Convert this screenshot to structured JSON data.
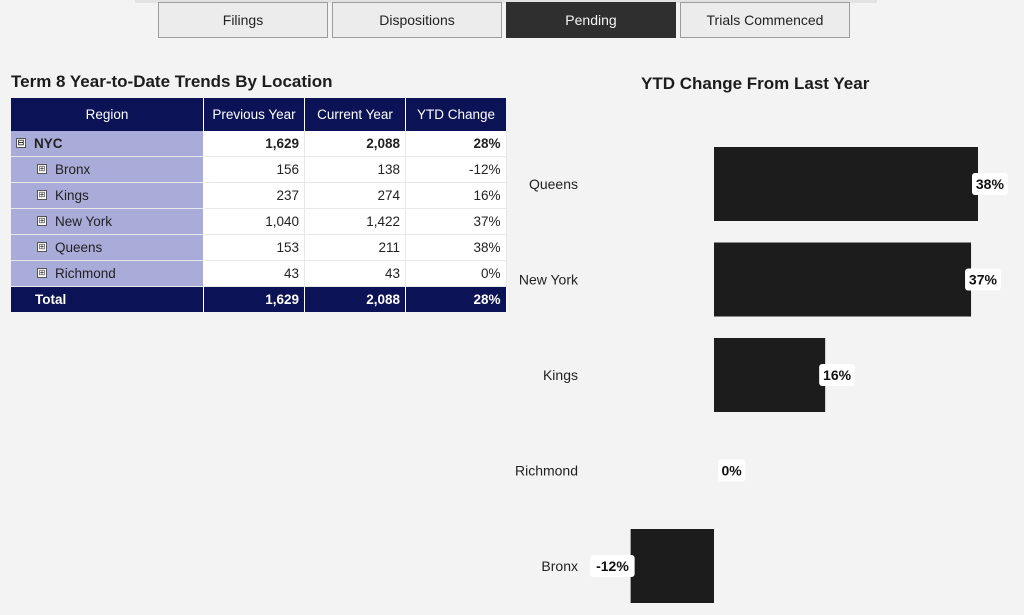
{
  "tabs": [
    {
      "label": "Filings",
      "active": false
    },
    {
      "label": "Dispositions",
      "active": false
    },
    {
      "label": "Pending",
      "active": true
    },
    {
      "label": "Trials Commenced",
      "active": false
    }
  ],
  "table": {
    "title": "Term 8 Year-to-Date Trends By Location",
    "columns": [
      "Region",
      "Previous Year",
      "Current Year",
      "YTD Change"
    ],
    "parent": {
      "toggle": "⊟",
      "region": "NYC",
      "previous": "1,629",
      "current": "2,088",
      "change": "28%"
    },
    "rows": [
      {
        "toggle": "⊞",
        "region": "Bronx",
        "previous": "156",
        "current": "138",
        "change": "-12%"
      },
      {
        "toggle": "⊞",
        "region": "Kings",
        "previous": "237",
        "current": "274",
        "change": "16%"
      },
      {
        "toggle": "⊞",
        "region": "New York",
        "previous": "1,040",
        "current": "1,422",
        "change": "37%"
      },
      {
        "toggle": "⊞",
        "region": "Queens",
        "previous": "153",
        "current": "211",
        "change": "38%"
      },
      {
        "toggle": "⊞",
        "region": "Richmond",
        "previous": "43",
        "current": "43",
        "change": "0%"
      }
    ],
    "total": {
      "region": "Total",
      "previous": "1,629",
      "current": "2,088",
      "change": "28%"
    }
  },
  "chart_data": {
    "type": "bar",
    "orientation": "horizontal",
    "title": "YTD Change From Last Year",
    "categories": [
      "Queens",
      "New York",
      "Kings",
      "Richmond",
      "Bronx"
    ],
    "values": [
      38,
      37,
      16,
      0,
      -12
    ],
    "labels": [
      "38%",
      "37%",
      "16%",
      "0%",
      "-12%"
    ],
    "bar_color": "#1c1c1c",
    "label_bg": "#ffffff"
  }
}
